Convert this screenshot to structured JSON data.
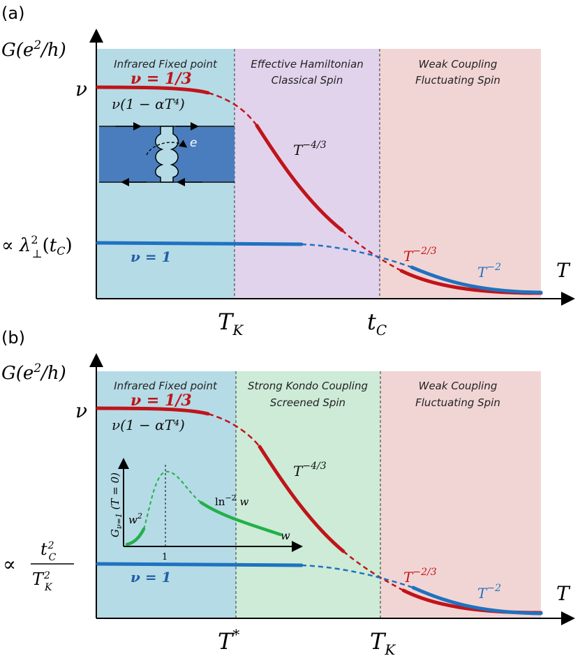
{
  "panel_a": {
    "panel_label": "(a)",
    "y_axis_label": "G(e²/h)",
    "x_axis_label": "T",
    "y_tick_nu": "ν",
    "y_tick_lambda": "∝ λ⊥²(tC)",
    "x_tick_1": "T_K",
    "x_tick_2": "t_C",
    "region_1_line1": "Infrared Fixed point",
    "region_2_line1": "Effective Hamiltonian",
    "region_2_line2": "Classical Spin",
    "region_3_line1": "Weak Coupling",
    "region_3_line2": "Fluctuating Spin",
    "label_nu_third": "ν = 1/3",
    "label_nu_one": "ν = 1",
    "label_low_t": "ν(1 − αT⁴)",
    "label_t_m43": "T^−4/3",
    "label_t_m23": "T^−2/3",
    "label_t_m2": "T^−2",
    "inset_electron_label": "e"
  },
  "panel_b": {
    "panel_label": "(b)",
    "y_axis_label": "G(e²/h)",
    "x_axis_label": "T",
    "y_tick_nu": "ν",
    "y_tick_ratio": "∝ tC²/TK²",
    "x_tick_1": "T*",
    "x_tick_2": "T_K",
    "region_1_line1": "Infrared Fixed point",
    "region_2_line1": "Strong Kondo Coupling",
    "region_2_line2": "Screened Spin",
    "region_3_line1": "Weak Coupling",
    "region_3_line2": "Fluctuating Spin",
    "label_nu_third": "ν = 1/3",
    "label_nu_one": "ν = 1",
    "label_low_t": "ν(1 − αT⁴)",
    "label_t_m43": "T^−4/3",
    "label_t_m23": "T^−2/3",
    "label_t_m2": "T^−2",
    "inset_y_label": "Gν=1 (T = 0)",
    "inset_x_label": "w",
    "inset_x_tick": "1",
    "inset_w2": "w²",
    "inset_ln": "ln⁻² w"
  },
  "colors": {
    "region_infrared": "#b5dbe6",
    "region_effective": "#e2d3ec",
    "region_kondo": "#cdebd6",
    "region_weak": "#f1d5d4",
    "curve_red": "#c0141a",
    "curve_blue": "#1f72c0",
    "curve_green": "#22b04a",
    "device_blue": "#4a7dbd",
    "label_red": "#c0141a",
    "label_blue": "#1f5fa6"
  }
}
